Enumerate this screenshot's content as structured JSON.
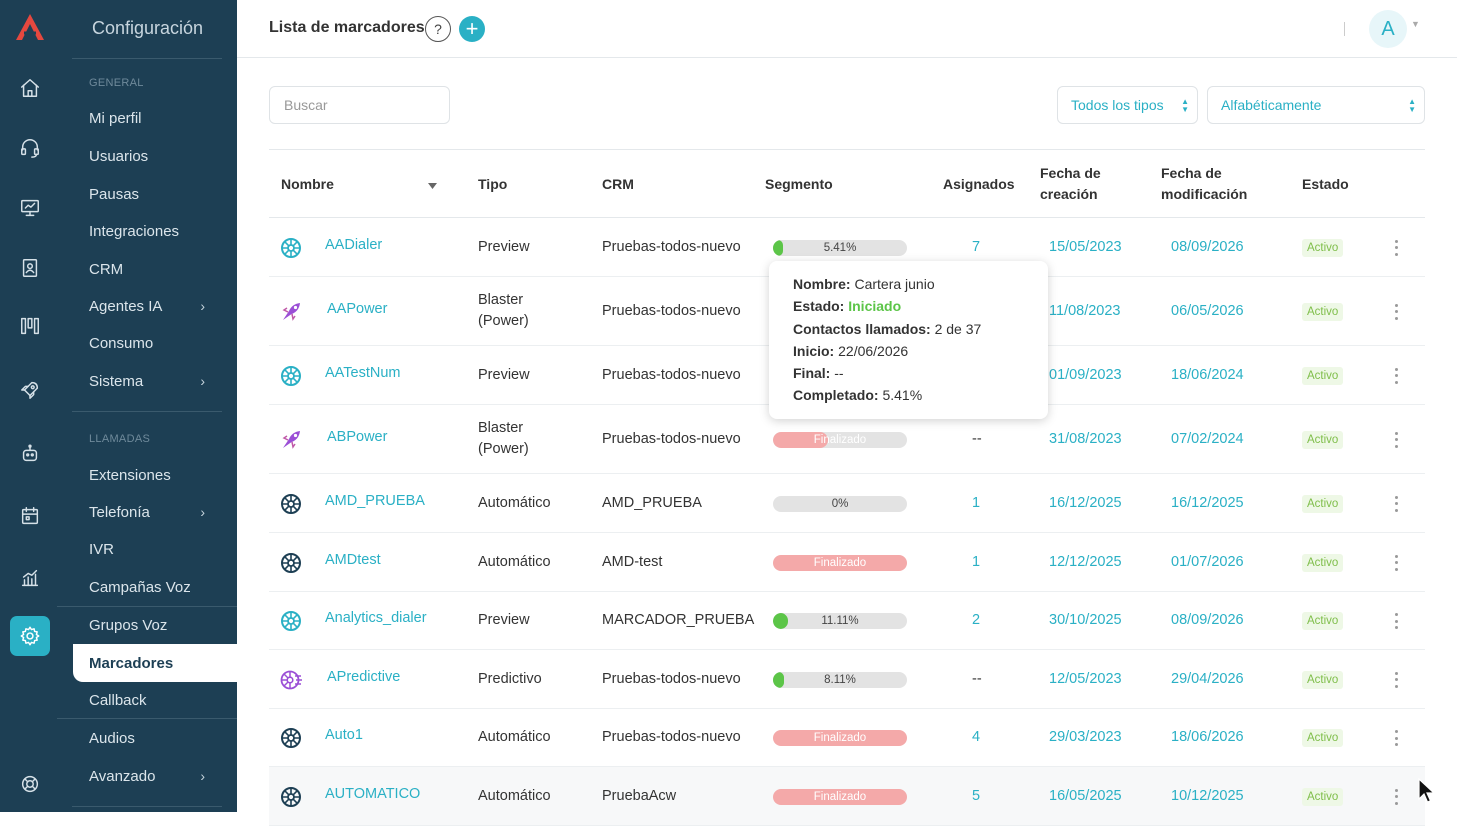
{
  "sidebar": {
    "title": "Configuración",
    "sections": [
      {
        "label": "GENERAL"
      },
      {
        "label": "LLAMADAS"
      }
    ],
    "items_general": [
      "Mi perfil",
      "Usuarios",
      "Pausas",
      "Integraciones",
      "CRM",
      "Agentes IA",
      "Consumo",
      "Sistema"
    ],
    "items_llamadas": [
      "Extensiones",
      "Telefonía",
      "IVR",
      "Campañas Voz",
      "Grupos Voz",
      "Marcadores",
      "Callback",
      "Audios",
      "Avanzado"
    ],
    "submenu_chevron": "›"
  },
  "header": {
    "title": "Lista de marcadores",
    "help_label": "?",
    "add_label": "+",
    "avatar_letter": "A"
  },
  "filters": {
    "search_placeholder": "Buscar",
    "type_select": "Todos los tipos",
    "sort_select": "Alfabéticamente"
  },
  "table": {
    "headers": {
      "nombre": "Nombre",
      "tipo": "Tipo",
      "crm": "CRM",
      "segmento": "Segmento",
      "asignados": "Asignados",
      "fecha_creacion": "Fecha de creación",
      "fecha_modificacion": "Fecha de modificación",
      "estado": "Estado"
    },
    "rows": [
      {
        "nombre": "AADialer",
        "tipo": "Preview",
        "crm": "Pruebas-todos-nuevo",
        "segmento": "5.41%",
        "progress": 5.41,
        "asignados": "7",
        "creacion": "15/05/2023",
        "modificacion": "08/09/2026",
        "estado": "Activo",
        "icon": "preview-dialer-icon"
      },
      {
        "nombre": "AAPower",
        "tipo": "Blaster (Power)",
        "crm": "Pruebas-todos-nuevo",
        "segmento": "",
        "progress": null,
        "asignados": "",
        "creacion": "11/08/2023",
        "modificacion": "06/05/2026",
        "estado": "Activo",
        "icon": "power-blaster-icon"
      },
      {
        "nombre": "AATestNum",
        "tipo": "Preview",
        "crm": "Pruebas-todos-nuevo",
        "segmento": "",
        "progress": null,
        "asignados": "",
        "creacion": "01/09/2023",
        "modificacion": "18/06/2024",
        "estado": "Activo",
        "icon": "preview-dialer-icon"
      },
      {
        "nombre": "ABPower",
        "tipo": "Blaster (Power)",
        "crm": "Pruebas-todos-nuevo",
        "segmento": "Finalizado",
        "progress": "fin",
        "asignados": "--",
        "creacion": "31/08/2023",
        "modificacion": "07/02/2024",
        "estado": "Activo",
        "icon": "power-blaster-icon"
      },
      {
        "nombre": "AMD_PRUEBA",
        "tipo": "Automático",
        "crm": "AMD_PRUEBA",
        "segmento": "0%",
        "progress": 0,
        "asignados": "1",
        "creacion": "16/12/2025",
        "modificacion": "16/12/2025",
        "estado": "Activo",
        "icon": "automatic-dialer-icon"
      },
      {
        "nombre": "AMDtest",
        "tipo": "Automático",
        "crm": "AMD-test",
        "segmento": "Finalizado",
        "progress": "fin",
        "asignados": "1",
        "creacion": "12/12/2025",
        "modificacion": "01/07/2026",
        "estado": "Activo",
        "icon": "automatic-dialer-icon"
      },
      {
        "nombre": "Analytics_dialer",
        "tipo": "Preview",
        "crm": "MARCADOR_PRUEBA",
        "segmento": "11.11%",
        "progress": 11.11,
        "asignados": "2",
        "creacion": "30/10/2025",
        "modificacion": "08/09/2026",
        "estado": "Activo",
        "icon": "preview-dialer-icon"
      },
      {
        "nombre": "APredictive",
        "tipo": "Predictivo",
        "crm": "Pruebas-todos-nuevo",
        "segmento": "8.11%",
        "progress": 8.11,
        "asignados": "--",
        "creacion": "12/05/2023",
        "modificacion": "29/04/2026",
        "estado": "Activo",
        "icon": "predictive-dialer-icon"
      },
      {
        "nombre": "Auto1",
        "tipo": "Automático",
        "crm": "Pruebas-todos-nuevo",
        "segmento": "Finalizado",
        "progress": "fin",
        "asignados": "4",
        "creacion": "29/03/2023",
        "modificacion": "18/06/2026",
        "estado": "Activo",
        "icon": "automatic-dialer-icon"
      },
      {
        "nombre": "AUTOMATICO",
        "tipo": "Automático",
        "crm": "PruebaAcw",
        "segmento": "Finalizado",
        "progress": "fin",
        "asignados": "5",
        "creacion": "16/05/2025",
        "modificacion": "10/12/2025",
        "estado": "Activo",
        "icon": "automatic-dialer-icon"
      }
    ]
  },
  "tooltip": {
    "nombre_label": "Nombre:",
    "nombre": "Cartera junio",
    "estado_label": "Estado:",
    "estado": "Iniciado",
    "contactos_label": "Contactos llamados:",
    "contactos": "2 de 37",
    "inicio_label": "Inicio:",
    "inicio": "22/06/2026",
    "final_label": "Final:",
    "final": "--",
    "completado_label": "Completado:",
    "completado": "5.41%"
  },
  "colors": {
    "sidebar_bg": "#1d3f54",
    "accent": "#2ab0c5",
    "progress_green": "#5cc548",
    "finalizado_red": "#f4a9a9",
    "badge_green": "#7fbe4a"
  }
}
